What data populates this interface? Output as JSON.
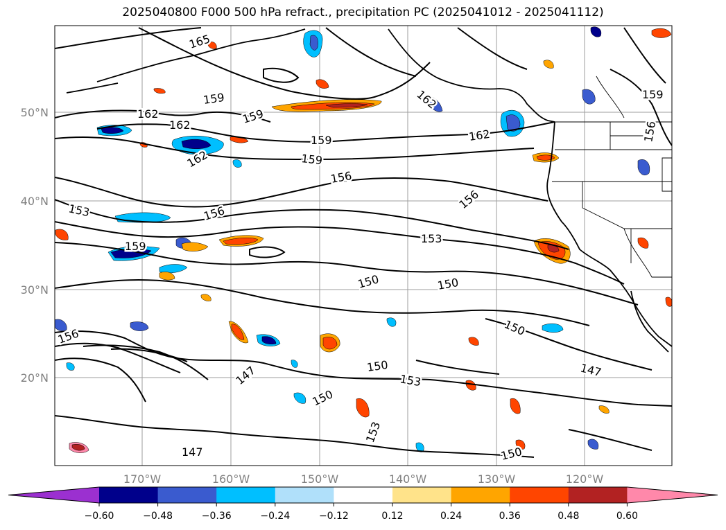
{
  "title": "2025040800 F000 500 hPa refract., precipitation PC (2025041012 - 2025041112)",
  "map": {
    "lon_ticks": [
      "170°W",
      "160°W",
      "150°W",
      "140°W",
      "130°W",
      "120°W"
    ],
    "lat_ticks": [
      "50°N",
      "40°N",
      "30°N",
      "20°N"
    ],
    "grid": true
  },
  "contour_labels": [
    {
      "text": "165"
    },
    {
      "text": "162"
    },
    {
      "text": "162"
    },
    {
      "text": "162"
    },
    {
      "text": "162"
    },
    {
      "text": "159"
    },
    {
      "text": "159"
    },
    {
      "text": "159"
    },
    {
      "text": "159"
    },
    {
      "text": "159"
    },
    {
      "text": "156"
    },
    {
      "text": "156"
    },
    {
      "text": "156"
    },
    {
      "text": "153"
    },
    {
      "text": "153"
    },
    {
      "text": "150"
    },
    {
      "text": "150"
    },
    {
      "text": "150"
    },
    {
      "text": "150"
    },
    {
      "text": "150"
    },
    {
      "text": "147"
    },
    {
      "text": "147"
    },
    {
      "text": "147"
    },
    {
      "text": "153"
    },
    {
      "text": "153"
    },
    {
      "text": "150"
    },
    {
      "text": "156"
    },
    {
      "text": "162"
    },
    {
      "text": "156"
    },
    {
      "text": "159"
    }
  ],
  "colorbar": {
    "ticks": [
      "−0.60",
      "−0.48",
      "−0.36",
      "−0.24",
      "−0.12",
      "0.12",
      "0.24",
      "0.36",
      "0.48",
      "0.60"
    ],
    "colors": [
      "#9b30d0",
      "#00008b",
      "#3a5bcf",
      "#00bfff",
      "#b0e0fa",
      "#ffffff",
      "#ffe38a",
      "#ffa500",
      "#ff4500",
      "#b22222",
      "#ff88aa"
    ]
  },
  "blob_colors": {
    "neg_light": "#b0e0fa",
    "neg_mid": "#00bfff",
    "neg_dark": "#3a5bcf",
    "neg_darkest": "#00008b",
    "pos_light": "#ffe38a",
    "pos_mid": "#ffa500",
    "pos_dark": "#ff4500",
    "pos_darkest": "#b22222"
  }
}
